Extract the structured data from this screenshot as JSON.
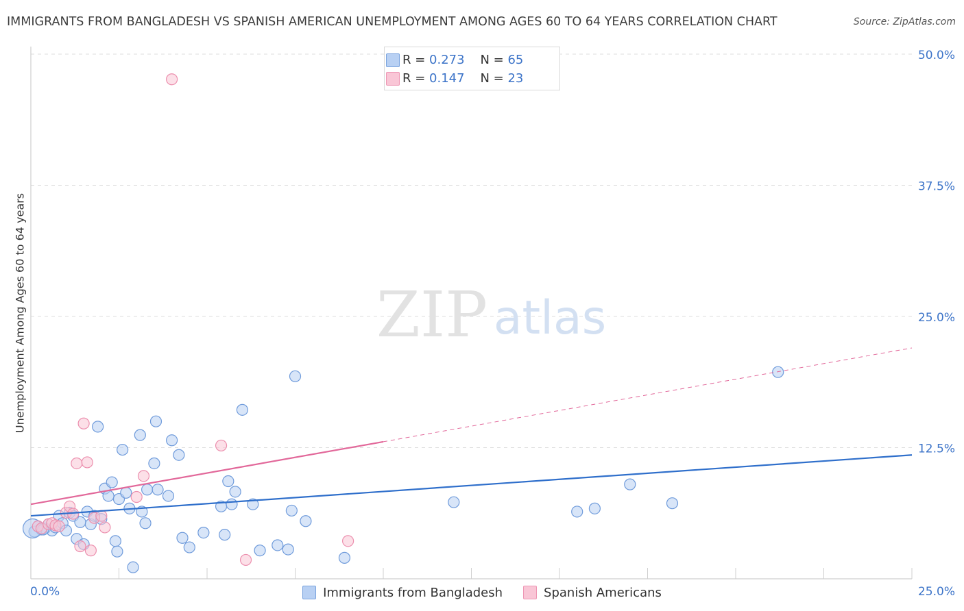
{
  "title": "IMMIGRANTS FROM BANGLADESH VS SPANISH AMERICAN UNEMPLOYMENT AMONG AGES 60 TO 64 YEARS CORRELATION CHART",
  "source": "Source: ZipAtlas.com",
  "watermark": {
    "zip": "ZIP",
    "atlas": "atlas"
  },
  "legend_top": [
    {
      "r_label": "R =",
      "r_value": "0.273",
      "n_label": "N =",
      "n_value": "65"
    },
    {
      "r_label": "R =",
      "r_value": "0.147",
      "n_label": "N =",
      "n_value": "23"
    }
  ],
  "colors": {
    "blue_fill": "#b8d0f3",
    "blue_stroke": "#6f9bdb",
    "blue_line": "#2f6fcb",
    "pink_fill": "#f9c6d6",
    "pink_stroke": "#ec8fae",
    "pink_line": "#e2689a",
    "tick_label": "#3b73c8",
    "grid": "#dddddd"
  },
  "chart_data": {
    "type": "scatter",
    "title": "IMMIGRANTS FROM BANGLADESH VS SPANISH AMERICAN UNEMPLOYMENT AMONG AGES 60 TO 64 YEARS CORRELATION CHART",
    "xlabel": "",
    "ylabel": "Unemployment Among Ages 60 to 64 years",
    "xlim": [
      0,
      25
    ],
    "ylim": [
      0,
      52
    ],
    "x_tick_labels": [
      "0.0%",
      "25.0%"
    ],
    "y_ticks": [
      12.5,
      25.0,
      37.5,
      50.0
    ],
    "y_tick_labels": [
      "12.5%",
      "25.0%",
      "37.5%",
      "50.0%"
    ],
    "grid": true,
    "legend_placement": "top-center",
    "series": [
      {
        "name": "Immigrants from Bangladesh",
        "color": "blue",
        "trend": {
          "x0": 0,
          "y0": 6.0,
          "x1": 25,
          "y1": 11.8,
          "solid_until": 25
        },
        "points": [
          {
            "x": 0.1,
            "y": 4.5
          },
          {
            "x": 0.2,
            "y": 5.0
          },
          {
            "x": 0.3,
            "y": 4.7
          },
          {
            "x": 0.4,
            "y": 4.8
          },
          {
            "x": 0.5,
            "y": 5.2
          },
          {
            "x": 0.6,
            "y": 4.6
          },
          {
            "x": 0.7,
            "y": 4.9
          },
          {
            "x": 0.8,
            "y": 6.0
          },
          {
            "x": 0.9,
            "y": 5.3
          },
          {
            "x": 1.0,
            "y": 4.6
          },
          {
            "x": 1.1,
            "y": 6.3
          },
          {
            "x": 1.2,
            "y": 6.0
          },
          {
            "x": 1.3,
            "y": 3.8
          },
          {
            "x": 1.4,
            "y": 5.4
          },
          {
            "x": 1.5,
            "y": 3.3
          },
          {
            "x": 1.6,
            "y": 6.4
          },
          {
            "x": 1.7,
            "y": 5.2
          },
          {
            "x": 1.8,
            "y": 6.0
          },
          {
            "x": 1.9,
            "y": 14.5
          },
          {
            "x": 2.0,
            "y": 5.7
          },
          {
            "x": 2.1,
            "y": 8.6
          },
          {
            "x": 2.2,
            "y": 7.9
          },
          {
            "x": 2.3,
            "y": 9.2
          },
          {
            "x": 2.4,
            "y": 3.6
          },
          {
            "x": 2.45,
            "y": 2.6
          },
          {
            "x": 2.5,
            "y": 7.6
          },
          {
            "x": 2.6,
            "y": 12.3
          },
          {
            "x": 2.7,
            "y": 8.2
          },
          {
            "x": 2.8,
            "y": 6.7
          },
          {
            "x": 2.9,
            "y": 1.1
          },
          {
            "x": 3.1,
            "y": 13.7
          },
          {
            "x": 3.15,
            "y": 6.4
          },
          {
            "x": 3.25,
            "y": 5.3
          },
          {
            "x": 3.3,
            "y": 8.5
          },
          {
            "x": 3.5,
            "y": 11.0
          },
          {
            "x": 3.55,
            "y": 15.0
          },
          {
            "x": 3.6,
            "y": 8.5
          },
          {
            "x": 3.9,
            "y": 7.9
          },
          {
            "x": 4.0,
            "y": 13.2
          },
          {
            "x": 4.2,
            "y": 11.8
          },
          {
            "x": 4.3,
            "y": 3.9
          },
          {
            "x": 4.5,
            "y": 3.0
          },
          {
            "x": 4.9,
            "y": 4.4
          },
          {
            "x": 5.4,
            "y": 6.9
          },
          {
            "x": 5.5,
            "y": 4.2
          },
          {
            "x": 5.6,
            "y": 9.3
          },
          {
            "x": 5.7,
            "y": 7.1
          },
          {
            "x": 5.8,
            "y": 8.3
          },
          {
            "x": 6.0,
            "y": 16.1
          },
          {
            "x": 6.3,
            "y": 7.1
          },
          {
            "x": 6.5,
            "y": 2.7
          },
          {
            "x": 7.0,
            "y": 3.2
          },
          {
            "x": 7.3,
            "y": 2.8
          },
          {
            "x": 7.4,
            "y": 6.5
          },
          {
            "x": 7.5,
            "y": 19.3
          },
          {
            "x": 7.8,
            "y": 5.5
          },
          {
            "x": 8.9,
            "y": 2.0
          },
          {
            "x": 12.0,
            "y": 7.3
          },
          {
            "x": 15.5,
            "y": 6.4
          },
          {
            "x": 16.0,
            "y": 6.7
          },
          {
            "x": 17.0,
            "y": 9.0
          },
          {
            "x": 18.2,
            "y": 7.2
          },
          {
            "x": 21.2,
            "y": 19.7
          },
          {
            "x": 0.05,
            "y": 4.8,
            "big": true
          },
          {
            "x": 0.35,
            "y": 4.7
          }
        ]
      },
      {
        "name": "Spanish Americans",
        "color": "pink",
        "trend": {
          "x0": 0,
          "y0": 7.1,
          "x1": 25,
          "y1": 22.0,
          "solid_until": 10
        },
        "points": [
          {
            "x": 0.2,
            "y": 5.0
          },
          {
            "x": 0.3,
            "y": 4.8
          },
          {
            "x": 0.5,
            "y": 5.2
          },
          {
            "x": 0.6,
            "y": 5.3
          },
          {
            "x": 0.7,
            "y": 5.1
          },
          {
            "x": 0.8,
            "y": 5.0
          },
          {
            "x": 1.0,
            "y": 6.3
          },
          {
            "x": 1.1,
            "y": 6.9
          },
          {
            "x": 1.2,
            "y": 6.2
          },
          {
            "x": 1.3,
            "y": 11.0
          },
          {
            "x": 1.4,
            "y": 3.1
          },
          {
            "x": 1.5,
            "y": 14.8
          },
          {
            "x": 1.6,
            "y": 11.1
          },
          {
            "x": 1.7,
            "y": 2.7
          },
          {
            "x": 1.8,
            "y": 5.8
          },
          {
            "x": 2.0,
            "y": 6.0
          },
          {
            "x": 2.1,
            "y": 4.9
          },
          {
            "x": 3.0,
            "y": 7.8
          },
          {
            "x": 3.2,
            "y": 9.8
          },
          {
            "x": 4.0,
            "y": 47.6
          },
          {
            "x": 5.4,
            "y": 12.7
          },
          {
            "x": 6.1,
            "y": 1.8
          },
          {
            "x": 9.0,
            "y": 3.6
          }
        ]
      }
    ]
  },
  "legend_bottom": [
    {
      "label": "Immigrants from Bangladesh",
      "color": "blue"
    },
    {
      "label": "Spanish Americans",
      "color": "pink"
    }
  ]
}
